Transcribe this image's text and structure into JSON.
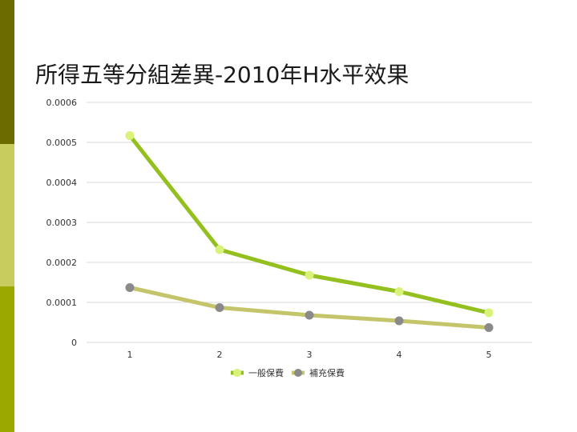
{
  "slide": {
    "title": "所得五等分組差異-2010年H水平效果",
    "bar_colors": [
      "#6b6b00",
      "#c8cc5e",
      "#9aa800"
    ]
  },
  "chart_data": {
    "type": "line",
    "title": "",
    "xlabel": "",
    "ylabel": "",
    "x": [
      1,
      2,
      3,
      4,
      5
    ],
    "x_tick_labels": [
      "1",
      "2",
      "3",
      "4",
      "5"
    ],
    "ylim": [
      0,
      0.0006
    ],
    "y_ticks": [
      0,
      0.0001,
      0.0002,
      0.0003,
      0.0004,
      0.0005,
      0.0006
    ],
    "y_tick_labels": [
      "0",
      "0.0001",
      "0.0002",
      "0.0003",
      "0.0004",
      "0.0005",
      "0.0006"
    ],
    "grid": true,
    "legend_position": "bottom",
    "series": [
      {
        "name": "一般保費",
        "values": [
          0.000517,
          0.000232,
          0.000168,
          0.000127,
          7.4e-05
        ],
        "line_color": "#93c01f",
        "marker_color": "#d9f27a"
      },
      {
        "name": "補充保費",
        "values": [
          0.000137,
          8.7e-05,
          6.8e-05,
          5.4e-05,
          3.7e-05
        ],
        "line_color": "#c4c46a",
        "marker_color": "#8a8a8a"
      }
    ]
  }
}
